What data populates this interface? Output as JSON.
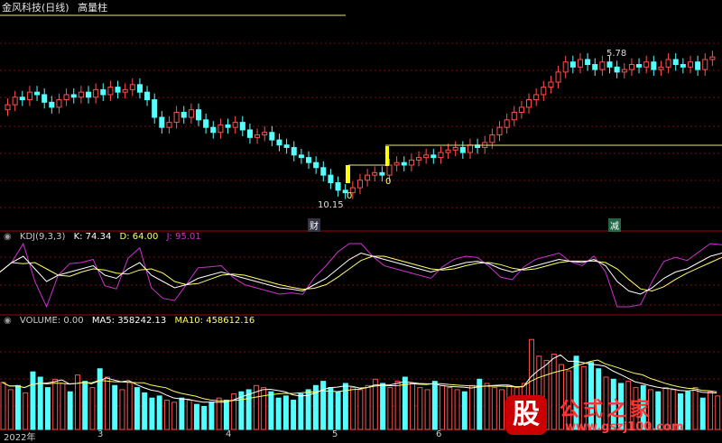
{
  "header": {
    "title": "金风科技(日线)",
    "indicator": "高量柱"
  },
  "markers": {
    "high_label": "5.78",
    "low_label": "10.15",
    "zero_label_1": "0",
    "zero_label_2": "0",
    "badge_1": "财",
    "badge_2": "减"
  },
  "kdj": {
    "title": "KDJ(9,3,3)",
    "k_label": "K: 74.34",
    "d_label": "D: 64.00",
    "j_label": "J: 95.01",
    "colors": {
      "k": "#ffffff",
      "d": "#ffff66",
      "j": "#cc33cc"
    }
  },
  "volume": {
    "title": "VOLUME: 0.00",
    "ma5_label": "MA5: 358242.13",
    "ma10_label": "MA10: 458612.16"
  },
  "time_axis": [
    "2022年",
    "3",
    "4",
    "5",
    "6"
  ],
  "logo": {
    "glyph": "股",
    "text": "公式之家",
    "url": "www.gszj100.com"
  },
  "colors": {
    "up": "#ff5050",
    "down": "#54ffff",
    "yellow": "#ffff00",
    "hline": "#e6e68c",
    "grid": "#7a0a0a"
  },
  "chart_data": {
    "type": "candlestick",
    "note_units": "price relative to visible panel",
    "closes": [
      12.1,
      12.4,
      12.3,
      12.6,
      12.5,
      12.2,
      12.0,
      12.3,
      12.5,
      12.4,
      12.6,
      12.4,
      12.7,
      12.5,
      12.8,
      12.6,
      12.7,
      12.9,
      12.6,
      12.3,
      11.6,
      11.2,
      11.4,
      11.8,
      11.6,
      11.9,
      11.5,
      11.2,
      11.0,
      11.3,
      11.2,
      11.4,
      11.1,
      10.8,
      10.9,
      11.0,
      10.7,
      10.5,
      10.4,
      10.1,
      10.0,
      9.8,
      9.6,
      9.3,
      9.0,
      8.7,
      8.6,
      8.8,
      9.1,
      9.3,
      9.4,
      9.3,
      9.7,
      9.8,
      9.7,
      9.9,
      10.0,
      10.1,
      10.0,
      10.2,
      10.3,
      10.4,
      10.2,
      10.5,
      10.4,
      10.6,
      10.9,
      11.2,
      11.5,
      11.8,
      12.0,
      12.3,
      12.5,
      12.8,
      13.0,
      13.4,
      13.8,
      13.6,
      13.9,
      13.7,
      13.5,
      13.8,
      13.6,
      13.4,
      13.5,
      13.7,
      13.6,
      13.8,
      13.5,
      13.6,
      13.9,
      13.7,
      13.6,
      13.8,
      13.5,
      13.9,
      14.0
    ],
    "kdj_k": [
      55,
      70,
      80,
      60,
      40,
      50,
      55,
      60,
      65,
      50,
      45,
      60,
      70,
      50,
      40,
      30,
      35,
      45,
      50,
      55,
      50,
      45,
      40,
      35,
      30,
      28,
      25,
      35,
      45,
      60,
      75,
      85,
      80,
      75,
      70,
      65,
      60,
      55,
      60,
      65,
      70,
      72,
      68,
      60,
      55,
      60,
      65,
      70,
      75,
      72,
      70,
      75,
      65,
      40,
      25,
      20,
      30,
      45,
      55,
      60,
      70,
      80,
      85
    ],
    "volume": [
      0.45,
      0.38,
      0.42,
      0.35,
      0.55,
      0.5,
      0.4,
      0.48,
      0.44,
      0.36,
      0.52,
      0.46,
      0.4,
      0.58,
      0.5,
      0.42,
      0.38,
      0.45,
      0.4,
      0.35,
      0.3,
      0.32,
      0.28,
      0.26,
      0.3,
      0.28,
      0.24,
      0.22,
      0.26,
      0.3,
      0.28,
      0.34,
      0.36,
      0.38,
      0.42,
      0.4,
      0.36,
      0.3,
      0.32,
      0.28,
      0.34,
      0.38,
      0.42,
      0.46,
      0.4,
      0.36,
      0.44,
      0.4,
      0.38,
      0.42,
      0.48,
      0.44,
      0.4,
      0.46,
      0.5,
      0.44,
      0.4,
      0.38,
      0.46,
      0.42,
      0.4,
      0.38,
      0.36,
      0.42,
      0.48,
      0.44,
      0.4,
      0.38,
      0.42,
      0.4,
      0.44,
      0.86,
      0.7,
      0.66,
      0.72,
      0.62,
      0.56,
      0.7,
      0.6,
      0.64,
      0.58,
      0.5,
      0.48,
      0.44,
      0.46,
      0.4,
      0.42,
      0.38,
      0.36,
      0.4,
      0.38,
      0.34,
      0.36,
      0.4,
      0.3,
      0.36,
      0.32
    ]
  }
}
